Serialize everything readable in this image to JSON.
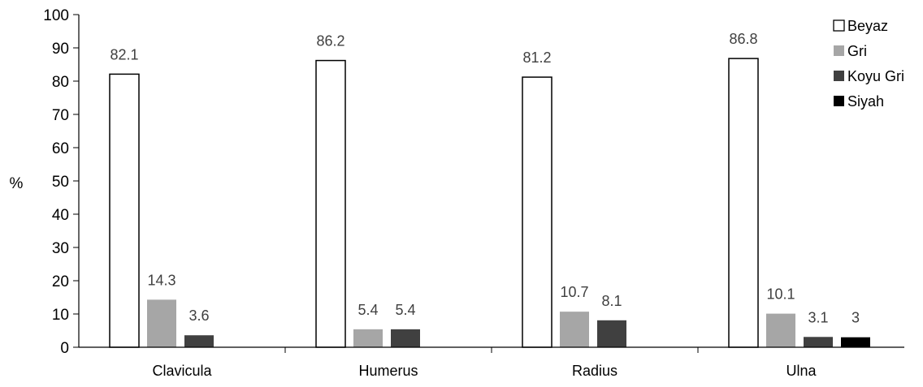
{
  "chart_data": {
    "type": "bar",
    "title": "",
    "xlabel": "",
    "ylabel": "%",
    "ylim": [
      0,
      100
    ],
    "yticks": [
      0,
      10,
      20,
      30,
      40,
      50,
      60,
      70,
      80,
      90,
      100
    ],
    "categories": [
      "Clavicula",
      "Humerus",
      "Radius",
      "Ulna"
    ],
    "series": [
      {
        "name": "Beyaz",
        "color": "#ffffff",
        "stroke": "#000000",
        "values": [
          82.1,
          86.2,
          81.2,
          86.8
        ],
        "labels": [
          "82.1",
          "86.2",
          "81.2",
          "86.8"
        ]
      },
      {
        "name": "Gri",
        "color": "#a6a6a6",
        "stroke": "none",
        "values": [
          14.3,
          5.4,
          10.7,
          10.1
        ],
        "labels": [
          "14.3",
          "5.4",
          "10.7",
          "10.1"
        ]
      },
      {
        "name": "Koyu Gri",
        "color": "#404040",
        "stroke": "none",
        "values": [
          3.6,
          5.4,
          8.1,
          3.1
        ],
        "labels": [
          "3.6",
          "5.4",
          "8.1",
          "3.1"
        ]
      },
      {
        "name": "Siyah",
        "color": "#000000",
        "stroke": "none",
        "values": [
          0,
          0,
          0,
          3
        ],
        "labels": [
          "",
          "",
          "",
          "3"
        ]
      }
    ],
    "grid": false,
    "legend_position": "top-right"
  }
}
